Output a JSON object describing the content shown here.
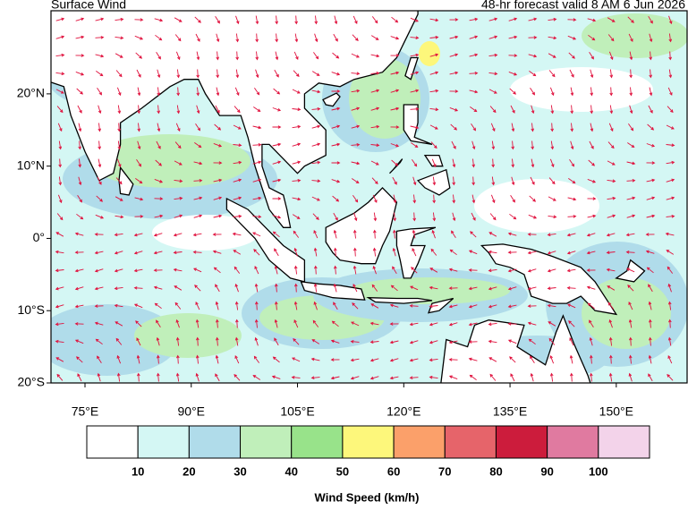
{
  "map_data": {
    "title": "Surface Wind",
    "subtitle": "48-hr forecast valid 8 AM 6 Jun 2026",
    "xlim": [
      70.2,
      160
    ],
    "ylim": [
      -20,
      31.5
    ],
    "xticks": [
      {
        "value": 75,
        "label": "75°E"
      },
      {
        "value": 90,
        "label": "90°E"
      },
      {
        "value": 105,
        "label": "105°E"
      },
      {
        "value": 120,
        "label": "120°E"
      },
      {
        "value": 135,
        "label": "135°E"
      },
      {
        "value": 150,
        "label": "150°E"
      }
    ],
    "yticks": [
      {
        "value": 20,
        "label": "20°N"
      },
      {
        "value": 10,
        "label": "10°N"
      },
      {
        "value": 0,
        "label": "0°"
      },
      {
        "value": -10,
        "label": "10°S"
      },
      {
        "value": -20,
        "label": "20°S"
      }
    ],
    "colorbar": {
      "title": "Wind Speed (km/h)",
      "levels": [
        10,
        20,
        30,
        40,
        50,
        60,
        70,
        80,
        90,
        100
      ],
      "colors": [
        "#ffffff",
        "#d4f7f4",
        "#b0dcea",
        "#c0efba",
        "#98e38a",
        "#fdf77b",
        "#fba06a",
        "#e6646a",
        "#cc1c3c",
        "#e07aa0",
        "#f3d3ea"
      ]
    }
  }
}
